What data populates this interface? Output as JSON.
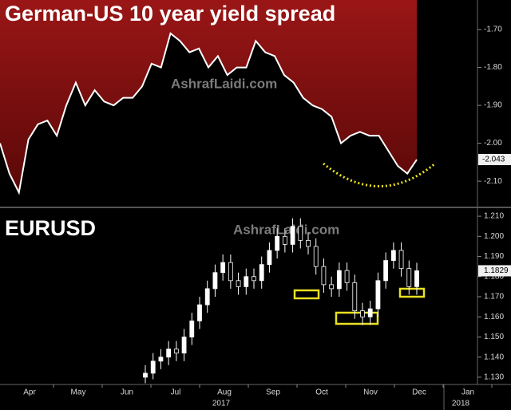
{
  "chart_data": [
    {
      "type": "line",
      "title": "German-US 10 year yield spread",
      "watermark": "AshrafLaidi.com",
      "color": "#ffffff",
      "fill": "#8e1414",
      "values": [
        -2.0,
        -2.08,
        -2.13,
        -1.99,
        -1.95,
        -1.94,
        -1.98,
        -1.9,
        -1.84,
        -1.9,
        -1.86,
        -1.89,
        -1.9,
        -1.88,
        -1.88,
        -1.85,
        -1.79,
        -1.8,
        -1.71,
        -1.73,
        -1.76,
        -1.75,
        -1.8,
        -1.77,
        -1.82,
        -1.8,
        -1.8,
        -1.73,
        -1.76,
        -1.77,
        -1.82,
        -1.84,
        -1.88,
        -1.9,
        -1.91,
        -1.93,
        -2.0,
        -1.98,
        -1.97,
        -1.98,
        -1.98,
        -2.02,
        -2.06,
        -2.08,
        -2.043
      ],
      "ylim": [
        -2.165,
        -1.622
      ],
      "yticks": [
        {
          "value": -1.7,
          "label": "-1.70"
        },
        {
          "value": -1.8,
          "label": "-1.80"
        },
        {
          "value": -1.9,
          "label": "-1.90"
        },
        {
          "value": -2.0,
          "label": "-2.00"
        },
        {
          "value": -2.1,
          "label": "-2.10"
        }
      ]
    },
    {
      "type": "candlestick",
      "title": "EURUSD",
      "watermark": "AshrafLaidi.com",
      "color": "#ffffff",
      "open": [
        1.13,
        1.132,
        1.138,
        1.14,
        1.144,
        1.142,
        1.15,
        1.158,
        1.166,
        1.174,
        1.182,
        1.187,
        1.178,
        1.175,
        1.18,
        1.178,
        1.186,
        1.193,
        1.2,
        1.196,
        1.205,
        1.198,
        1.195,
        1.185,
        1.176,
        1.174,
        1.183,
        1.177,
        1.163,
        1.16,
        1.164,
        1.178,
        1.188,
        1.193,
        1.184,
        1.175
      ],
      "high": [
        1.136,
        1.142,
        1.144,
        1.148,
        1.148,
        1.154,
        1.162,
        1.17,
        1.178,
        1.186,
        1.191,
        1.191,
        1.182,
        1.184,
        1.184,
        1.19,
        1.197,
        1.204,
        1.204,
        1.209,
        1.209,
        1.202,
        1.199,
        1.189,
        1.18,
        1.187,
        1.187,
        1.181,
        1.167,
        1.168,
        1.182,
        1.192,
        1.197,
        1.197,
        1.188,
        1.1869
      ],
      "low": [
        1.127,
        1.129,
        1.134,
        1.136,
        1.138,
        1.138,
        1.146,
        1.154,
        1.162,
        1.17,
        1.178,
        1.174,
        1.171,
        1.171,
        1.174,
        1.174,
        1.182,
        1.189,
        1.192,
        1.192,
        1.194,
        1.191,
        1.181,
        1.172,
        1.17,
        1.17,
        1.173,
        1.159,
        1.156,
        1.156,
        1.16,
        1.174,
        1.184,
        1.18,
        1.171,
        1.171
      ],
      "close": [
        1.132,
        1.138,
        1.14,
        1.144,
        1.142,
        1.15,
        1.158,
        1.166,
        1.174,
        1.182,
        1.187,
        1.178,
        1.175,
        1.18,
        1.178,
        1.186,
        1.193,
        1.2,
        1.196,
        1.205,
        1.198,
        1.195,
        1.185,
        1.176,
        1.174,
        1.183,
        1.177,
        1.163,
        1.16,
        1.164,
        1.178,
        1.188,
        1.193,
        1.184,
        1.175,
        1.1829
      ],
      "ylim": [
        1.1264,
        1.2136
      ],
      "yticks": [
        {
          "value": 1.13,
          "label": "1.130"
        },
        {
          "value": 1.14,
          "label": "1.140"
        },
        {
          "value": 1.15,
          "label": "1.150"
        },
        {
          "value": 1.16,
          "label": "1.160"
        },
        {
          "value": 1.17,
          "label": "1.170"
        },
        {
          "value": 1.18,
          "label": "1.180"
        },
        {
          "value": 1.19,
          "label": "1.190"
        },
        {
          "value": 1.2,
          "label": "1.200"
        },
        {
          "value": 1.21,
          "label": "1.210"
        }
      ],
      "categories": [
        "Apr",
        "May",
        "Jun",
        "Jul",
        "Aug",
        "Sep",
        "Oct",
        "Nov",
        "Dec",
        "Jan"
      ],
      "years": [
        "2017",
        "2018"
      ]
    }
  ]
}
